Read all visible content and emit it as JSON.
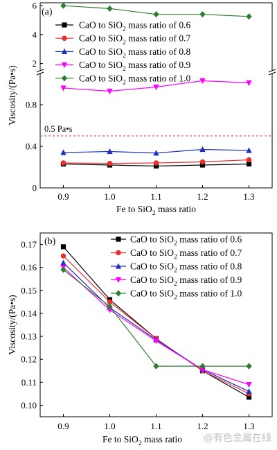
{
  "chart_data": [
    {
      "panel_label": "(a)",
      "type": "line",
      "ylabel": "Viscosity/(Pa•s)",
      "xlabel_parts": [
        "Fe to SiO",
        "2",
        " mass ratio"
      ],
      "x": [
        0.9,
        1.0,
        1.1,
        1.2,
        1.3
      ],
      "x_tick_labels": [
        "0.9",
        "1.0",
        "1.1",
        "1.2",
        "1.3"
      ],
      "xlim": [
        0.85,
        1.35
      ],
      "y_axis_broken": true,
      "lower_ylim": [
        0,
        1.1
      ],
      "lower_y_ticks": [
        "0",
        "0.4",
        "0.8"
      ],
      "upper_ylim": [
        1.5,
        6.2
      ],
      "upper_y_ticks": [
        "2",
        "4",
        "6"
      ],
      "reference_line": {
        "y": 0.5,
        "label": "0.5 Pa•s",
        "color": "#e8312f",
        "style": "dashed"
      },
      "legend_position": "top-right",
      "series": [
        {
          "name_parts": [
            "CaO to SiO",
            "2",
            " mass ratio of 0.6"
          ],
          "color": "#000000",
          "marker": "square",
          "values": [
            0.23,
            0.22,
            0.21,
            0.22,
            0.23
          ]
        },
        {
          "name_parts": [
            "CaO to SiO",
            "2",
            " mass ratio of 0.7"
          ],
          "color": "#e8312f",
          "marker": "circle",
          "values": [
            0.24,
            0.235,
            0.24,
            0.25,
            0.27
          ]
        },
        {
          "name_parts": [
            "CaO to SiO",
            "2",
            " mass ratio of 0.8"
          ],
          "color": "#1f2fbf",
          "marker": "triangle-up",
          "values": [
            0.34,
            0.35,
            0.335,
            0.37,
            0.36
          ]
        },
        {
          "name_parts": [
            "CaO to SiO",
            "2",
            " mass ratio of 0.9"
          ],
          "color": "#ff00ff",
          "marker": "triangle-down",
          "values": [
            0.96,
            0.93,
            0.97,
            1.03,
            1.01
          ]
        },
        {
          "name_parts": [
            "CaO to SiO",
            "2",
            " mass ratio of 1.0"
          ],
          "color": "#2e7d32",
          "marker": "diamond",
          "values": [
            6.0,
            5.8,
            5.4,
            5.4,
            5.25
          ]
        }
      ]
    },
    {
      "panel_label": "(b)",
      "type": "line",
      "ylabel": "Viscosity/(Pa•s)",
      "xlabel_parts": [
        "Fe to SiO",
        "2",
        " mass ratio"
      ],
      "x": [
        0.9,
        1.0,
        1.1,
        1.2,
        1.3
      ],
      "x_tick_labels": [
        "0.9",
        "1.0",
        "1.1",
        "1.2",
        "1.3"
      ],
      "xlim": [
        0.85,
        1.35
      ],
      "ylim": [
        0.095,
        0.175
      ],
      "y_ticks": [
        "0.10",
        "0.11",
        "0.12",
        "0.13",
        "0.14",
        "0.15",
        "0.16",
        "0.17"
      ],
      "legend_position": "top-right",
      "series": [
        {
          "name_parts": [
            "CaO to SiO",
            "2",
            " mass ratio of 0.6"
          ],
          "color": "#000000",
          "marker": "square",
          "values": [
            0.169,
            0.146,
            0.129,
            0.115,
            0.1035
          ]
        },
        {
          "name_parts": [
            "CaO to SiO",
            "2",
            " mass ratio of 0.7"
          ],
          "color": "#e8312f",
          "marker": "circle",
          "values": [
            0.165,
            0.145,
            0.129,
            0.115,
            0.105
          ]
        },
        {
          "name_parts": [
            "CaO to SiO",
            "2",
            " mass ratio of 0.8"
          ],
          "color": "#1f2fbf",
          "marker": "triangle-up",
          "values": [
            0.162,
            0.1425,
            0.1285,
            0.1155,
            0.106
          ]
        },
        {
          "name_parts": [
            "CaO to SiO",
            "2",
            " mass ratio of 0.9"
          ],
          "color": "#ff00ff",
          "marker": "triangle-down",
          "values": [
            0.16,
            0.1415,
            0.128,
            0.1155,
            0.109
          ]
        },
        {
          "name_parts": [
            "CaO to SiO",
            "2",
            " mass ratio of 1.0"
          ],
          "color": "#2e7d32",
          "marker": "diamond",
          "values": [
            0.159,
            0.143,
            0.117,
            0.117,
            0.117
          ]
        }
      ]
    }
  ],
  "watermark": "@有色金属在线"
}
